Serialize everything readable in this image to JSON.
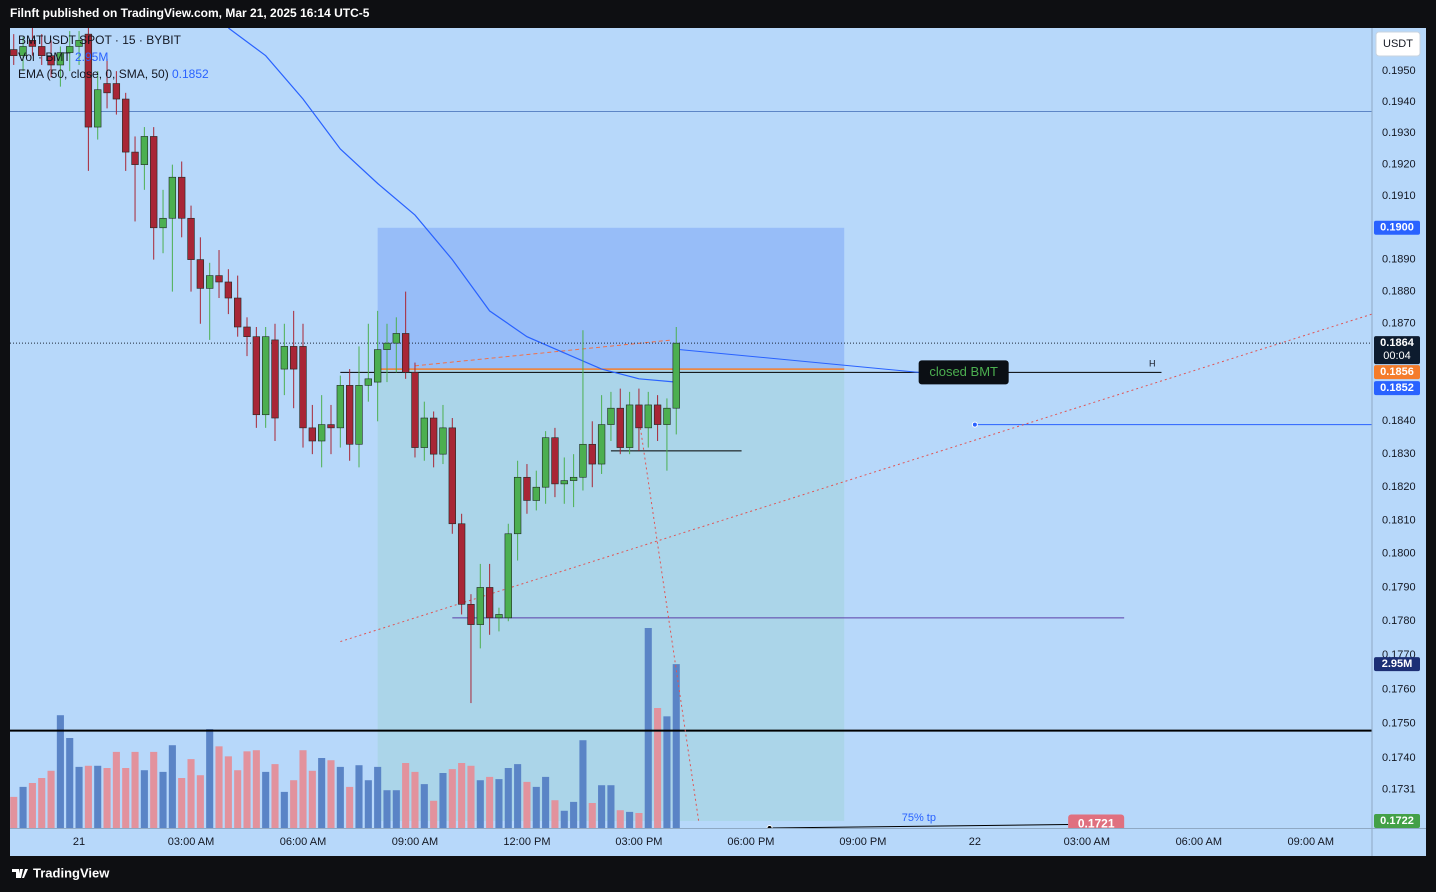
{
  "header": {
    "publisher": "Filnft published on TradingView.com, Mar 21, 2025 16:14 UTC-5"
  },
  "brand": "TradingView",
  "chart_data": {
    "type": "candlestick",
    "title": "BMTUSDT SPOT · 15 · BYBIT",
    "currency": "USDT",
    "log_scale": true,
    "grid": false,
    "ylim": [
      0.172,
      0.1964
    ],
    "xlim": [
      -1.85,
      34.64
    ],
    "yticks": [
      {
        "value": 0.195,
        "label": "0.1950"
      },
      {
        "value": 0.194,
        "label": "0.1940"
      },
      {
        "value": 0.193,
        "label": "0.1930"
      },
      {
        "value": 0.192,
        "label": "0.1920"
      },
      {
        "value": 0.191,
        "label": "0.1910"
      },
      {
        "value": 0.19,
        "label": "0.1900"
      },
      {
        "value": 0.189,
        "label": "0.1890"
      },
      {
        "value": 0.188,
        "label": "0.1880"
      },
      {
        "value": 0.187,
        "label": "0.1870"
      },
      {
        "value": 0.186,
        "label": "0.1860"
      },
      {
        "value": 0.185,
        "label": "0.1850"
      },
      {
        "value": 0.184,
        "label": "0.1840"
      },
      {
        "value": 0.183,
        "label": "0.1830"
      },
      {
        "value": 0.182,
        "label": "0.1820"
      },
      {
        "value": 0.181,
        "label": "0.1810"
      },
      {
        "value": 0.18,
        "label": "0.1800"
      },
      {
        "value": 0.179,
        "label": "0.1790"
      },
      {
        "value": 0.178,
        "label": "0.1780"
      },
      {
        "value": 0.177,
        "label": "0.1770"
      },
      {
        "value": 0.176,
        "label": "0.1760"
      },
      {
        "value": 0.175,
        "label": "0.1750"
      },
      {
        "value": 0.174,
        "label": "0.1740"
      },
      {
        "value": 0.1731,
        "label": "0.1731"
      }
    ],
    "xticks": [
      {
        "value": 0,
        "label": "21"
      },
      {
        "value": 3,
        "label": "03:00 AM"
      },
      {
        "value": 6,
        "label": "06:00 AM"
      },
      {
        "value": 9,
        "label": "09:00 AM"
      },
      {
        "value": 12,
        "label": "12:00 PM"
      },
      {
        "value": 15,
        "label": "03:00 PM"
      },
      {
        "value": 18,
        "label": "06:00 PM"
      },
      {
        "value": 21,
        "label": "09:00 PM"
      },
      {
        "value": 24,
        "label": "22"
      },
      {
        "value": 27,
        "label": "03:00 AM"
      },
      {
        "value": 30,
        "label": "06:00 AM"
      },
      {
        "value": 33,
        "label": "09:00 AM"
      }
    ],
    "colors": {
      "up": "#4caf50",
      "down": "#a82636",
      "volume_up": "#5a84c6",
      "volume_down": "#e2929d",
      "background": "#b7d8fa"
    },
    "x": [
      -1.75,
      -1.5,
      -1.25,
      -1,
      -0.75,
      -0.5,
      -0.25,
      0,
      0.25,
      0.5,
      0.75,
      1,
      1.25,
      1.5,
      1.75,
      2,
      2.25,
      2.5,
      2.75,
      3,
      3.25,
      3.5,
      3.75,
      4,
      4.25,
      4.5,
      4.75,
      5,
      5.25,
      5.5,
      5.75,
      6,
      6.25,
      6.5,
      6.75,
      7,
      7.25,
      7.5,
      7.75,
      8,
      8.25,
      8.5,
      8.75,
      9,
      9.25,
      9.5,
      9.75,
      10,
      10.25,
      10.5,
      10.75,
      11,
      11.25,
      11.5,
      11.75,
      12,
      12.25,
      12.5,
      12.75,
      13,
      13.25,
      13.5,
      13.75,
      14,
      14.25,
      14.5,
      14.75,
      15,
      15.25,
      15.5,
      15.75,
      16
    ],
    "open": [
      0.1957,
      0.1955,
      0.196,
      0.1958,
      0.1955,
      0.1952,
      0.1956,
      0.1958,
      0.1962,
      0.1932,
      0.1946,
      0.1946,
      0.1941,
      0.1924,
      0.192,
      0.1929,
      0.19,
      0.1903,
      0.1916,
      0.1903,
      0.189,
      0.1881,
      0.1885,
      0.1883,
      0.1878,
      0.1869,
      0.1866,
      0.1842,
      0.1865,
      0.1856,
      0.1863,
      0.1863,
      0.1838,
      0.1834,
      0.1839,
      0.1838,
      0.1851,
      0.1833,
      0.1851,
      0.1852,
      0.1862,
      0.1864,
      0.1867,
      0.1855,
      0.1832,
      0.1841,
      0.183,
      0.1838,
      0.1809,
      0.1785,
      0.1779,
      0.179,
      0.1781,
      0.1781,
      0.1806,
      0.1823,
      0.1816,
      0.182,
      0.1835,
      0.1821,
      0.1822,
      0.1823,
      0.1833,
      0.1827,
      0.1839,
      0.1844,
      0.1832,
      0.1845,
      0.1838,
      0.1845,
      0.1839,
      0.1844
    ],
    "high": [
      0.1962,
      0.1961,
      0.1964,
      0.1962,
      0.196,
      0.1958,
      0.1963,
      0.1963,
      0.1964,
      0.195,
      0.1954,
      0.195,
      0.1943,
      0.1929,
      0.1932,
      0.1932,
      0.1912,
      0.192,
      0.1921,
      0.1907,
      0.1897,
      0.1889,
      0.1893,
      0.1887,
      0.1885,
      0.1872,
      0.1869,
      0.1869,
      0.187,
      0.187,
      0.1874,
      0.187,
      0.1845,
      0.1848,
      0.1845,
      0.1854,
      0.1856,
      0.1863,
      0.187,
      0.1874,
      0.187,
      0.1872,
      0.188,
      0.1858,
      0.1846,
      0.1843,
      0.1845,
      0.1841,
      0.1812,
      0.1788,
      0.1797,
      0.1797,
      0.1784,
      0.1809,
      0.1828,
      0.1827,
      0.1825,
      0.1837,
      0.1838,
      0.1829,
      0.183,
      0.1868,
      0.184,
      0.1848,
      0.1849,
      0.185,
      0.1849,
      0.185,
      0.1849,
      0.1848,
      0.1847,
      0.1869
    ],
    "low": [
      0.1952,
      0.195,
      0.1955,
      0.1952,
      0.1948,
      0.1945,
      0.195,
      0.1952,
      0.1918,
      0.1928,
      0.1938,
      0.1936,
      0.1918,
      0.1902,
      0.1912,
      0.189,
      0.1892,
      0.188,
      0.1897,
      0.188,
      0.187,
      0.1865,
      0.1878,
      0.1873,
      0.1866,
      0.186,
      0.1838,
      0.1838,
      0.1834,
      0.1848,
      0.1844,
      0.1832,
      0.183,
      0.1826,
      0.183,
      0.1832,
      0.1828,
      0.1826,
      0.1846,
      0.184,
      0.1852,
      0.1855,
      0.1853,
      0.1829,
      0.1828,
      0.1826,
      0.1827,
      0.1806,
      0.1782,
      0.1756,
      0.1772,
      0.1776,
      0.1777,
      0.178,
      0.1798,
      0.1812,
      0.1813,
      0.1815,
      0.1817,
      0.1815,
      0.1814,
      0.1819,
      0.182,
      0.1824,
      0.1834,
      0.183,
      0.183,
      0.1831,
      0.1832,
      0.1834,
      0.1825,
      0.1836
    ],
    "close": [
      0.1955,
      0.1958,
      0.1958,
      0.1955,
      0.1952,
      0.1956,
      0.1958,
      0.196,
      0.1932,
      0.1944,
      0.1943,
      0.1941,
      0.1924,
      0.192,
      0.1929,
      0.19,
      0.1903,
      0.1916,
      0.1903,
      0.189,
      0.1881,
      0.1885,
      0.1883,
      0.1878,
      0.1869,
      0.1866,
      0.1842,
      0.1866,
      0.1841,
      0.1863,
      0.1856,
      0.1838,
      0.1834,
      0.1839,
      0.1838,
      0.1851,
      0.1833,
      0.1851,
      0.1853,
      0.1862,
      0.1864,
      0.1867,
      0.1855,
      0.1832,
      0.1841,
      0.183,
      0.1838,
      0.1809,
      0.1785,
      0.1779,
      0.179,
      0.1781,
      0.1782,
      0.1806,
      0.1823,
      0.1816,
      0.182,
      0.1835,
      0.1821,
      0.1822,
      0.1823,
      0.1833,
      0.1827,
      0.1839,
      0.1844,
      0.1832,
      0.1845,
      0.1838,
      0.1845,
      0.1839,
      0.1844,
      0.1864
    ],
    "volume": {
      "name": "Vol · BMT",
      "last_label": "2.95M",
      "ylim": [
        0,
        14.4
      ],
      "values": [
        0.56,
        0.74,
        0.81,
        0.9,
        1.03,
        2.03,
        1.62,
        1.1,
        1.12,
        1.12,
        1.08,
        1.37,
        1.08,
        1.37,
        1.04,
        1.37,
        1.01,
        1.49,
        0.9,
        1.24,
        0.95,
        1.78,
        1.47,
        1.29,
        1.04,
        1.38,
        1.4,
        1.01,
        1.15,
        0.65,
        0.86,
        1.4,
        1.03,
        1.26,
        1.22,
        1.1,
        0.74,
        1.13,
        0.86,
        1.1,
        0.68,
        0.68,
        1.17,
        1.01,
        0.79,
        0.49,
        0.99,
        1.06,
        1.17,
        1.12,
        0.86,
        0.92,
        0.88,
        1.08,
        1.15,
        0.83,
        0.74,
        0.92,
        0.5,
        0.31,
        0.47,
        1.58,
        0.45,
        0.77,
        0.77,
        0.32,
        0.29,
        0.27,
        3.6,
        2.16,
        2.01,
        2.95
      ]
    },
    "ema": {
      "name": "EMA (50, close, 0, SMA, 50)",
      "last_label": "0.1852",
      "color": "#2962ff",
      "x": [
        4,
        5,
        6,
        7,
        8,
        9,
        10,
        11,
        12,
        13,
        14,
        15,
        16
      ],
      "values": [
        0.1964,
        0.1955,
        0.1941,
        0.1925,
        0.1914,
        0.1904,
        0.189,
        0.1874,
        0.1866,
        0.1861,
        0.1856,
        0.1853,
        0.1852
      ]
    },
    "last_price": {
      "value": 0.1864,
      "label": "0.1864",
      "countdown": "00:04"
    },
    "position": {
      "x": [
        8,
        20.5
      ],
      "target": {
        "value": 0.19,
        "label": "0.1900"
      },
      "entry": {
        "value": 0.1856,
        "label": "0.1856"
      },
      "stop": {
        "value": 0.1722,
        "label": "0.1722"
      }
    },
    "drawings": [
      {
        "type": "hline",
        "y": 0.1937,
        "color": "#5d86c6"
      },
      {
        "type": "hline",
        "y": 0.1748,
        "color": "#000000",
        "width": 2
      },
      {
        "type": "line",
        "x": [
          7,
          29
        ],
        "y": [
          0.1855,
          0.1855
        ],
        "color": "#000000",
        "label": "H",
        "label_position": "end"
      },
      {
        "type": "line",
        "x": [
          24,
          34.64
        ],
        "y": [
          0.1839,
          0.1839
        ],
        "color": "#2962ff",
        "dot": true
      },
      {
        "type": "line",
        "x": [
          10,
          28
        ],
        "y": [
          0.1781,
          0.1781
        ],
        "color": "#5b3fa8"
      },
      {
        "type": "line",
        "x": [
          14.25,
          17.75
        ],
        "y": [
          0.1831,
          0.1831
        ],
        "color": "#000000"
      },
      {
        "type": "line",
        "x": [
          7,
          34.64
        ],
        "y": [
          0.1774,
          0.1873
        ],
        "color": "#e05555",
        "dash": "2 3"
      },
      {
        "type": "line",
        "x": [
          9,
          15.9
        ],
        "y": [
          0.1857,
          0.1865
        ],
        "color": "#f0704a",
        "dash": "4 3"
      },
      {
        "type": "line",
        "x": [
          15,
          16.6
        ],
        "y": [
          0.1841,
          0.1722
        ],
        "color": "#e05555",
        "dash": "2 3"
      },
      {
        "type": "line",
        "x": [
          16.1,
          22.5
        ],
        "y": [
          0.1862,
          0.1855
        ],
        "color": "#2962ff"
      },
      {
        "type": "line",
        "x": [
          18.5,
          26.5
        ],
        "y": [
          0.172,
          0.1721
        ],
        "color": "#000000",
        "dot": true,
        "label": "75% tp",
        "label_position": "middle",
        "tag": "0.1721"
      }
    ],
    "callout": {
      "text": "closed BMT",
      "x": 23.7,
      "y": 0.1855
    }
  }
}
